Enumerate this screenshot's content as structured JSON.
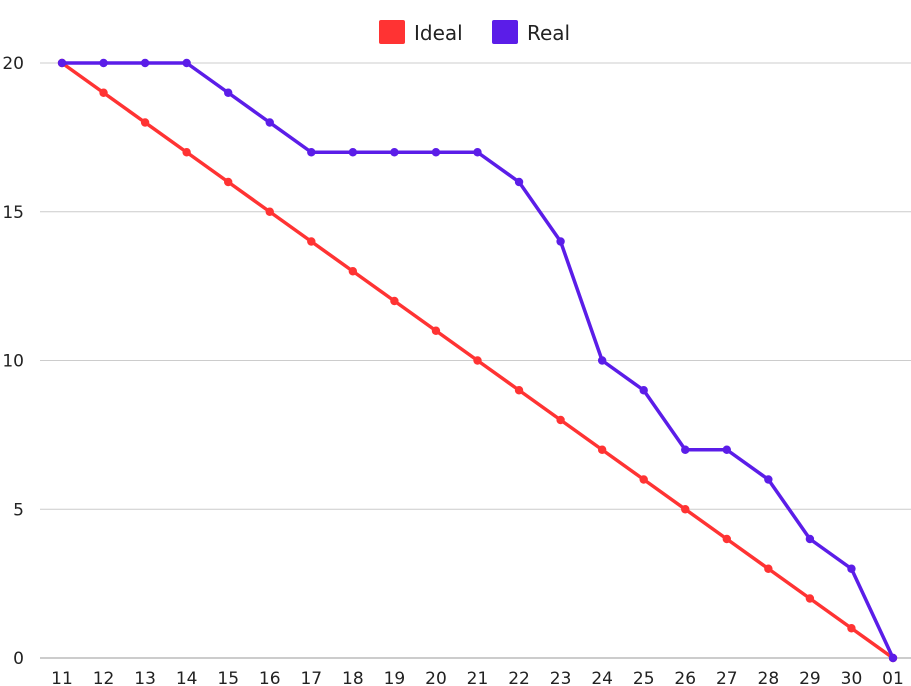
{
  "chart_data": {
    "type": "line",
    "title": "",
    "xlabel": "",
    "ylabel": "",
    "categories": [
      "11",
      "12",
      "13",
      "14",
      "15",
      "16",
      "17",
      "18",
      "19",
      "20",
      "21",
      "22",
      "23",
      "24",
      "25",
      "26",
      "27",
      "28",
      "29",
      "30",
      "01"
    ],
    "ylim": [
      0,
      20
    ],
    "yticks": [
      0,
      5,
      10,
      15,
      20
    ],
    "grid": true,
    "legend_position": "top-center",
    "series": [
      {
        "name": "Ideal",
        "color": "#ff3333",
        "values": [
          20,
          19,
          18,
          17,
          16,
          15,
          14,
          13,
          12,
          11,
          10,
          9,
          8,
          7,
          6,
          5,
          4,
          3,
          2,
          1,
          0
        ]
      },
      {
        "name": "Real",
        "color": "#5b1de8",
        "values": [
          20,
          20,
          20,
          20,
          19,
          18,
          17,
          17,
          17,
          17,
          17,
          16,
          14,
          10,
          9,
          7,
          7,
          6,
          4,
          3,
          0
        ]
      }
    ]
  }
}
